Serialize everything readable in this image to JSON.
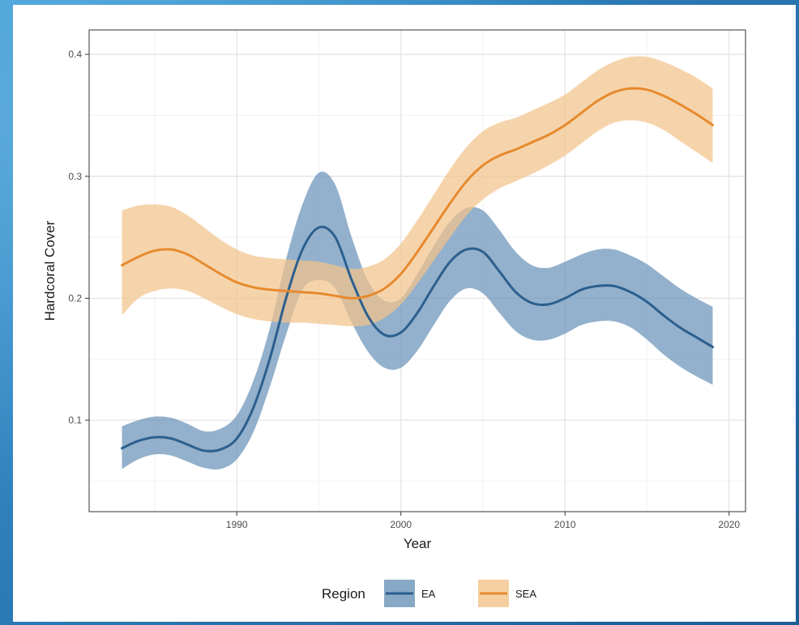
{
  "chart_data": {
    "type": "line",
    "xlabel": "Year",
    "ylabel": "Hardcoral Cover",
    "xlim": [
      1981,
      2021
    ],
    "ylim": [
      0.025,
      0.42
    ],
    "x_ticks": [
      1990,
      2000,
      2010,
      2020
    ],
    "y_ticks": [
      0.1,
      0.2,
      0.3,
      0.4
    ],
    "grid": true,
    "legend": {
      "title": "Region",
      "placement": "bottom"
    },
    "series": [
      {
        "name": "EA",
        "color": "#2c5f8e",
        "band_color": "#6a93b8",
        "x": [
          1983,
          1984,
          1985,
          1986,
          1987,
          1988,
          1989,
          1990,
          1991,
          1992,
          1993,
          1994,
          1995,
          1996,
          1997,
          1998,
          1999,
          2000,
          2001,
          2002,
          2003,
          2004,
          2005,
          2006,
          2007,
          2008,
          2009,
          2010,
          2011,
          2012,
          2013,
          2014,
          2015,
          2016,
          2017,
          2018,
          2019
        ],
        "y": [
          0.077,
          0.083,
          0.086,
          0.085,
          0.08,
          0.075,
          0.076,
          0.085,
          0.11,
          0.15,
          0.2,
          0.24,
          0.258,
          0.25,
          0.215,
          0.185,
          0.17,
          0.172,
          0.188,
          0.21,
          0.23,
          0.24,
          0.238,
          0.222,
          0.205,
          0.196,
          0.195,
          0.2,
          0.207,
          0.21,
          0.21,
          0.205,
          0.197,
          0.186,
          0.176,
          0.168,
          0.16
        ],
        "lower": [
          0.06,
          0.068,
          0.072,
          0.071,
          0.066,
          0.061,
          0.06,
          0.068,
          0.09,
          0.127,
          0.17,
          0.207,
          0.215,
          0.208,
          0.18,
          0.156,
          0.143,
          0.143,
          0.157,
          0.178,
          0.198,
          0.208,
          0.204,
          0.188,
          0.173,
          0.166,
          0.166,
          0.171,
          0.178,
          0.181,
          0.181,
          0.176,
          0.166,
          0.154,
          0.144,
          0.136,
          0.129
        ],
        "upper": [
          0.095,
          0.1,
          0.103,
          0.102,
          0.097,
          0.091,
          0.093,
          0.104,
          0.132,
          0.175,
          0.232,
          0.277,
          0.303,
          0.293,
          0.25,
          0.214,
          0.198,
          0.2,
          0.22,
          0.243,
          0.263,
          0.274,
          0.272,
          0.256,
          0.238,
          0.227,
          0.225,
          0.23,
          0.236,
          0.24,
          0.24,
          0.235,
          0.228,
          0.218,
          0.208,
          0.2,
          0.193
        ]
      },
      {
        "name": "SEA",
        "color": "#e68a2e",
        "band_color": "#f2c38a",
        "x": [
          1983,
          1984,
          1985,
          1986,
          1987,
          1988,
          1989,
          1990,
          1991,
          1992,
          1993,
          1994,
          1995,
          1996,
          1997,
          1998,
          1999,
          2000,
          2001,
          2002,
          2003,
          2004,
          2005,
          2006,
          2007,
          2008,
          2009,
          2010,
          2011,
          2012,
          2013,
          2014,
          2015,
          2016,
          2017,
          2018,
          2019
        ],
        "y": [
          0.227,
          0.234,
          0.239,
          0.24,
          0.236,
          0.228,
          0.22,
          0.213,
          0.209,
          0.207,
          0.206,
          0.205,
          0.204,
          0.202,
          0.2,
          0.202,
          0.208,
          0.22,
          0.238,
          0.258,
          0.278,
          0.296,
          0.309,
          0.317,
          0.322,
          0.328,
          0.334,
          0.342,
          0.352,
          0.362,
          0.369,
          0.372,
          0.371,
          0.366,
          0.359,
          0.351,
          0.342
        ],
        "lower": [
          0.186,
          0.2,
          0.206,
          0.208,
          0.206,
          0.2,
          0.193,
          0.187,
          0.183,
          0.181,
          0.18,
          0.18,
          0.179,
          0.178,
          0.177,
          0.178,
          0.184,
          0.195,
          0.212,
          0.231,
          0.25,
          0.268,
          0.281,
          0.29,
          0.296,
          0.302,
          0.309,
          0.317,
          0.327,
          0.337,
          0.344,
          0.346,
          0.344,
          0.338,
          0.329,
          0.32,
          0.311
        ],
        "upper": [
          0.272,
          0.276,
          0.277,
          0.275,
          0.268,
          0.258,
          0.248,
          0.24,
          0.235,
          0.233,
          0.232,
          0.231,
          0.23,
          0.227,
          0.224,
          0.226,
          0.232,
          0.245,
          0.264,
          0.285,
          0.306,
          0.324,
          0.337,
          0.344,
          0.348,
          0.354,
          0.36,
          0.367,
          0.377,
          0.387,
          0.394,
          0.398,
          0.398,
          0.394,
          0.388,
          0.381,
          0.372
        ]
      }
    ]
  }
}
